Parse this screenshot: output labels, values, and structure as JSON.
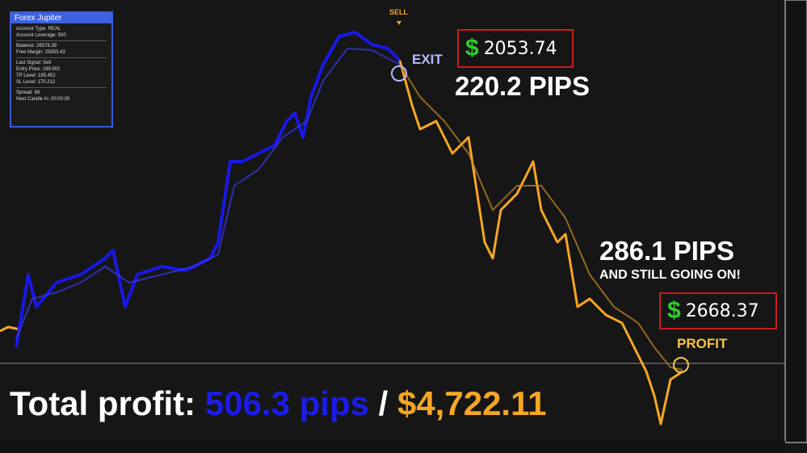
{
  "panel": {
    "title": "Forex Jupiter",
    "lines": [
      "Account Type: REAL",
      "Account Leverage: 500",
      "Balance: 26578.38",
      "Free Margin: 25853.43",
      "Last Signal: Sell",
      "Entry Price: 189.902",
      "TP Level: 185.452",
      "SL Level: 170.212",
      "Spread: 68",
      "Next Candle In: 00:00:00"
    ]
  },
  "annotations": {
    "sell": "SELL",
    "exit": "EXIT",
    "profit": "PROFIT",
    "trade1": {
      "currency": "$",
      "amount": "2053.74",
      "pips": "220.2 PIPS"
    },
    "trade2": {
      "currency": "$",
      "amount": "2668.37",
      "pips": "286.1 PIPS",
      "note": "AND STILL GOING ON!"
    }
  },
  "total": {
    "label": "Total profit:",
    "pips": "506.3 pips",
    "separator": "/",
    "money": "$4,722.11"
  }
}
